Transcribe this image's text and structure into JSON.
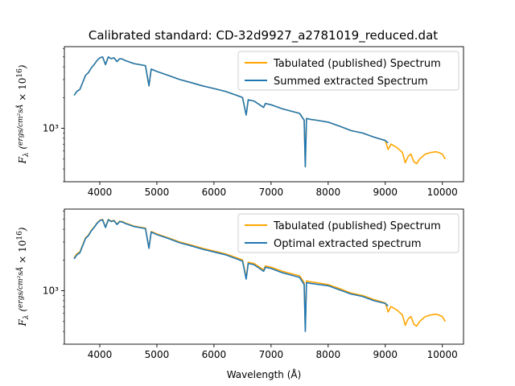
{
  "figure": {
    "title": "Calibrated standard: CD-32d9927_a2781019_reduced.dat"
  },
  "colors": {
    "tabulated": "#ffa500",
    "extracted": "#1f77b4"
  },
  "chart_data": [
    {
      "type": "line",
      "xlabel": "",
      "ylabel": "F_λ (ergs / cm² s Å × 10^16)",
      "ylabel_parts": {
        "symbol": "F",
        "sub": "λ",
        "num": "ergs",
        "den": "cm²sÅ",
        "factor": "× 10",
        "exp": "16"
      },
      "x_ticks": [
        "4000",
        "5000",
        "6000",
        "7000",
        "8000",
        "9000",
        "10000"
      ],
      "y_tick_label": "10³",
      "y_scale": "log",
      "xlim": [
        3380,
        10370
      ],
      "ylim": [
        300,
        6300
      ],
      "legend_position": "upper right",
      "legend": [
        "Tabulated (published) Spectrum",
        "Summed extracted Spectrum"
      ],
      "series": [
        {
          "name": "Tabulated (published) Spectrum",
          "x": [
            3550,
            3600,
            3650,
            3700,
            3750,
            3800,
            3850,
            3900,
            3950,
            4000,
            4050,
            4100,
            4150,
            4200,
            4250,
            4300,
            4350,
            4400,
            4450,
            4500,
            4600,
            4700,
            4800,
            4861,
            4900,
            5000,
            5200,
            5400,
            5600,
            5800,
            6000,
            6200,
            6400,
            6500,
            6563,
            6600,
            6700,
            6870,
            6900,
            7000,
            7200,
            7400,
            7500,
            7580,
            7600,
            7620,
            7700,
            7800,
            8000,
            8200,
            8400,
            8600,
            8800,
            9000,
            9050,
            9100,
            9200,
            9300,
            9350,
            9400,
            9450,
            9500,
            9550,
            9600,
            9700,
            9800,
            9900,
            10000,
            10050
          ],
          "y": [
            2100,
            2300,
            2400,
            2800,
            3300,
            3500,
            3900,
            4200,
            4600,
            4900,
            5000,
            4200,
            5000,
            4800,
            4900,
            4500,
            4800,
            4750,
            4600,
            4500,
            4300,
            4200,
            4100,
            2600,
            3800,
            3600,
            3300,
            3000,
            2800,
            2600,
            2450,
            2300,
            2100,
            2000,
            1350,
            1900,
            1850,
            1600,
            1750,
            1700,
            1550,
            1450,
            1400,
            1200,
            420,
            1250,
            1220,
            1200,
            1150,
            1050,
            950,
            900,
            820,
            760,
            620,
            700,
            650,
            580,
            460,
            530,
            560,
            470,
            450,
            500,
            560,
            580,
            590,
            560,
            500
          ]
        },
        {
          "name": "Summed extracted Spectrum",
          "x": [
            3550,
            3600,
            3650,
            3700,
            3750,
            3800,
            3850,
            3900,
            3950,
            4000,
            4050,
            4100,
            4150,
            4200,
            4250,
            4300,
            4350,
            4400,
            4450,
            4500,
            4600,
            4700,
            4800,
            4861,
            4900,
            5000,
            5200,
            5400,
            5600,
            5800,
            6000,
            6200,
            6400,
            6500,
            6563,
            6600,
            6700,
            6870,
            6900,
            7000,
            7200,
            7400,
            7500,
            7580,
            7600,
            7620,
            7700,
            7800,
            8000,
            8200,
            8400,
            8600,
            8800,
            9000,
            9050
          ],
          "y": [
            2100,
            2300,
            2400,
            2800,
            3300,
            3500,
            3900,
            4200,
            4600,
            4900,
            5000,
            4200,
            5000,
            4800,
            4900,
            4500,
            4800,
            4750,
            4600,
            4500,
            4300,
            4200,
            4100,
            2600,
            3800,
            3600,
            3300,
            3000,
            2800,
            2600,
            2450,
            2300,
            2100,
            2000,
            1350,
            1900,
            1850,
            1600,
            1750,
            1700,
            1550,
            1450,
            1400,
            1200,
            420,
            1250,
            1220,
            1200,
            1150,
            1050,
            950,
            900,
            820,
            760,
            720
          ]
        }
      ]
    },
    {
      "type": "line",
      "xlabel": "Wavelength (Å)",
      "ylabel": "F_λ (ergs / cm² s Å × 10^16)",
      "ylabel_parts": {
        "symbol": "F",
        "sub": "λ",
        "num": "ergs",
        "den": "cm²sÅ",
        "factor": "× 10",
        "exp": "16"
      },
      "x_ticks": [
        "4000",
        "5000",
        "6000",
        "7000",
        "8000",
        "9000",
        "10000"
      ],
      "y_tick_label": "10³",
      "y_scale": "log",
      "xlim": [
        3380,
        10370
      ],
      "ylim": [
        300,
        6300
      ],
      "legend_position": "upper right",
      "legend": [
        "Tabulated (published) Spectrum",
        "Optimal extracted spectrum"
      ],
      "series": [
        {
          "name": "Tabulated (published) Spectrum",
          "x": [
            3550,
            3600,
            3650,
            3700,
            3750,
            3800,
            3850,
            3900,
            3950,
            4000,
            4050,
            4100,
            4150,
            4200,
            4250,
            4300,
            4350,
            4400,
            4450,
            4500,
            4600,
            4700,
            4800,
            4861,
            4900,
            5000,
            5200,
            5400,
            5600,
            5800,
            6000,
            6200,
            6400,
            6500,
            6563,
            6600,
            6700,
            6870,
            6900,
            7000,
            7200,
            7400,
            7500,
            7580,
            7600,
            7620,
            7700,
            7800,
            8000,
            8200,
            8400,
            8600,
            8800,
            9000,
            9050,
            9100,
            9200,
            9300,
            9350,
            9400,
            9450,
            9500,
            9550,
            9600,
            9700,
            9800,
            9900,
            10000,
            10050
          ],
          "y": [
            2100,
            2300,
            2400,
            2800,
            3300,
            3500,
            3900,
            4200,
            4600,
            4900,
            5000,
            4200,
            5000,
            4800,
            4900,
            4500,
            4800,
            4750,
            4600,
            4500,
            4300,
            4200,
            4100,
            2600,
            3800,
            3600,
            3300,
            3000,
            2800,
            2600,
            2450,
            2300,
            2100,
            2000,
            1350,
            1900,
            1850,
            1600,
            1750,
            1700,
            1550,
            1450,
            1400,
            1200,
            420,
            1250,
            1220,
            1200,
            1150,
            1050,
            950,
            900,
            820,
            760,
            620,
            700,
            650,
            580,
            460,
            530,
            560,
            470,
            450,
            500,
            560,
            580,
            590,
            560,
            500
          ]
        },
        {
          "name": "Optimal extracted spectrum",
          "x": [
            3550,
            3600,
            3650,
            3700,
            3750,
            3800,
            3850,
            3900,
            3950,
            4000,
            4050,
            4100,
            4150,
            4200,
            4250,
            4300,
            4350,
            4400,
            4450,
            4500,
            4600,
            4700,
            4800,
            4861,
            4900,
            5000,
            5200,
            5400,
            5600,
            5800,
            6000,
            6200,
            6400,
            6500,
            6563,
            6600,
            6700,
            6870,
            6900,
            7000,
            7200,
            7400,
            7500,
            7580,
            7600,
            7620,
            7700,
            7800,
            8000,
            8200,
            8400,
            8600,
            8800,
            9000,
            9050
          ],
          "y": [
            2050,
            2250,
            2350,
            2750,
            3250,
            3450,
            3850,
            4150,
            4550,
            4850,
            4950,
            4150,
            4950,
            4750,
            4850,
            4450,
            4750,
            4700,
            4550,
            4450,
            4250,
            4150,
            4050,
            2600,
            3750,
            3550,
            3250,
            2950,
            2750,
            2550,
            2400,
            2250,
            2050,
            1950,
            1300,
            1850,
            1800,
            1550,
            1700,
            1650,
            1500,
            1400,
            1350,
            1150,
            400,
            1200,
            1180,
            1160,
            1120,
            1020,
            930,
            880,
            800,
            750,
            710
          ]
        }
      ]
    }
  ]
}
